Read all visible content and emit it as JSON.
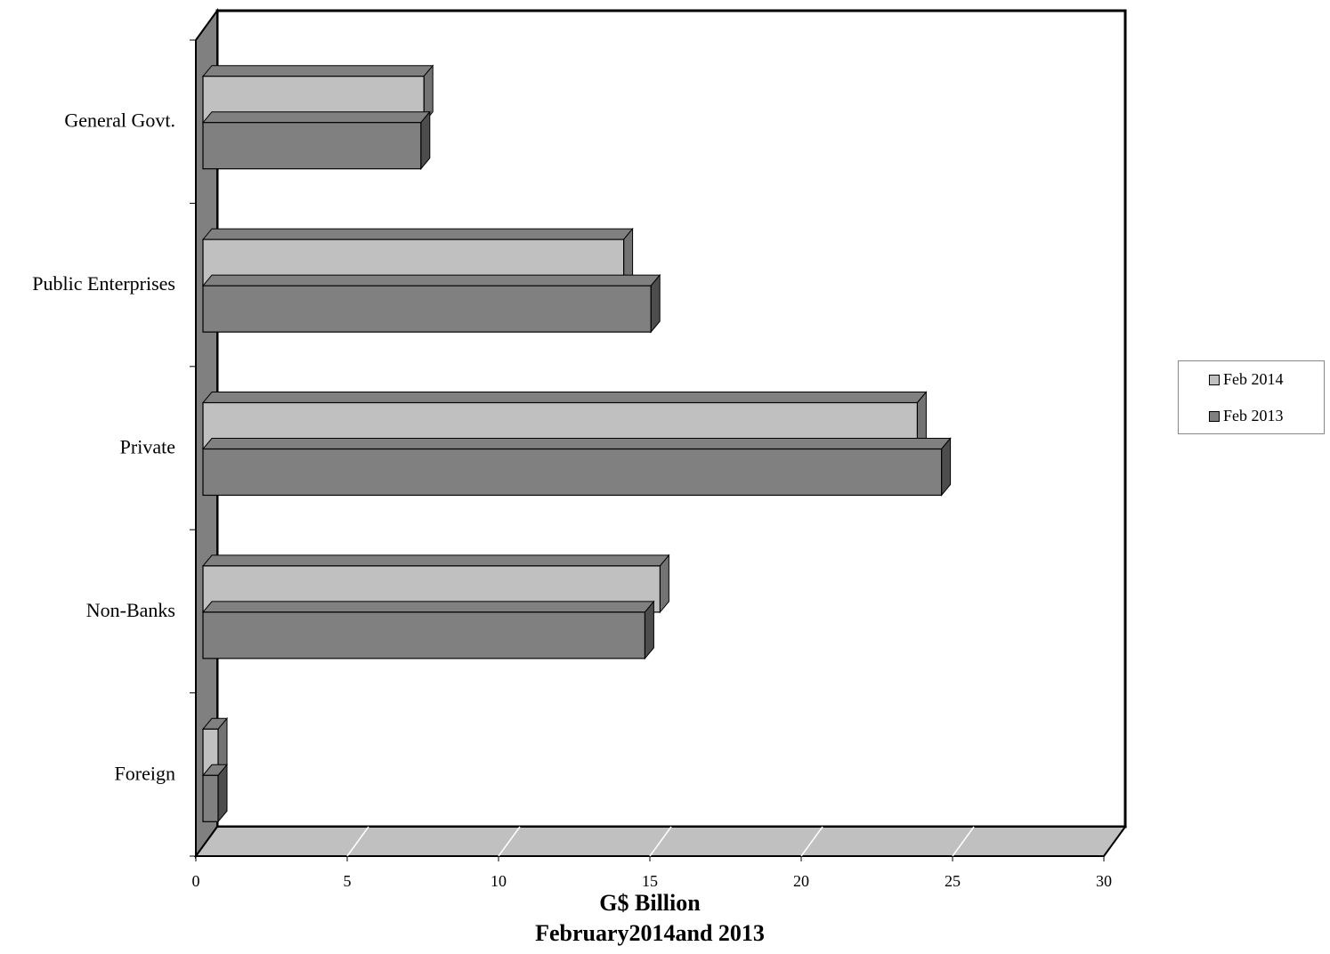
{
  "chart_data": {
    "type": "bar",
    "orientation": "horizontal",
    "three_d": true,
    "categories": [
      "General Govt.",
      "Public Enterprises",
      "Private",
      "Non-Banks",
      "Foreign"
    ],
    "series": [
      {
        "name": "Feb 2014",
        "values": [
          7.3,
          13.9,
          23.6,
          15.1,
          0.5
        ]
      },
      {
        "name": "Feb 2013",
        "values": [
          7.2,
          14.8,
          24.4,
          14.6,
          0.5
        ]
      }
    ],
    "colors": {
      "Feb 2014": "#c0c0c0",
      "Feb 2013": "#808080",
      "wall": "#808080",
      "floor": "#c0c0c0"
    },
    "xticks": [
      "0",
      "5",
      "10",
      "15",
      "20",
      "25",
      "30"
    ],
    "xlim": [
      0,
      30
    ],
    "xlabel": "G$ Billion",
    "subtitle": "February2014and 2013",
    "grid": false,
    "legend_position": "right"
  }
}
